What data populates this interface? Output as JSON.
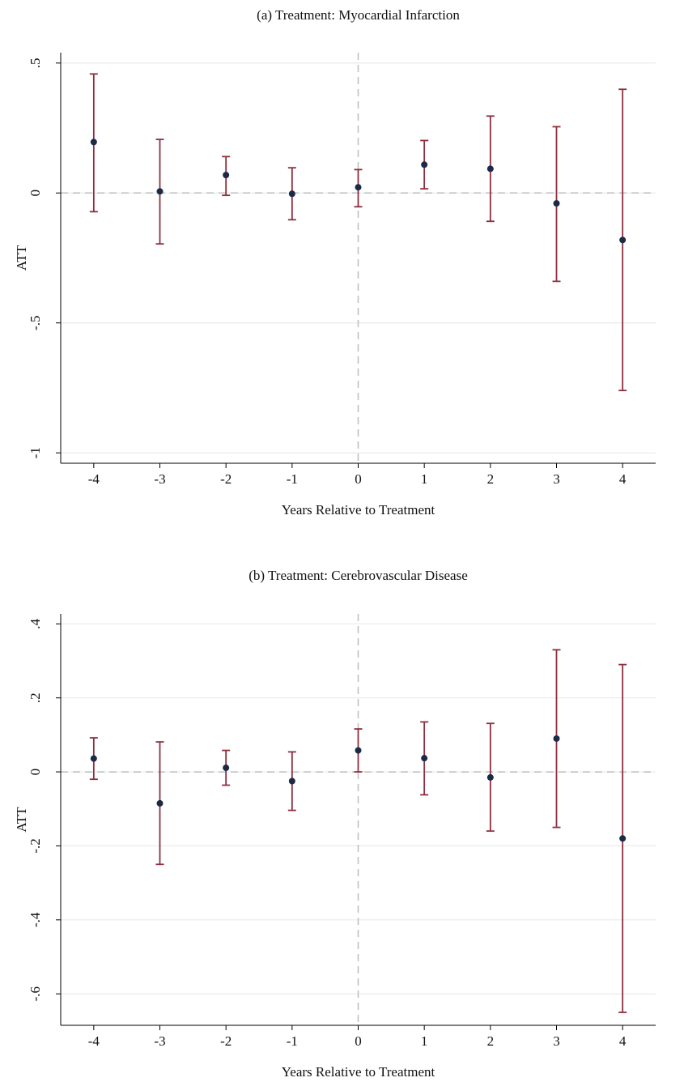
{
  "chart_data": [
    {
      "type": "errorbar",
      "title": "(a) Treatment: Myocardial Infarction",
      "xlabel": "Years Relative to Treatment",
      "ylabel": "ATT",
      "x": [
        -4,
        -3,
        -2,
        -1,
        0,
        1,
        2,
        3,
        4
      ],
      "values": [
        0.196,
        0.006,
        0.069,
        -0.003,
        0.022,
        0.109,
        0.093,
        -0.04,
        -0.181
      ],
      "lower": [
        -0.072,
        -0.196,
        -0.009,
        -0.103,
        -0.053,
        0.016,
        -0.109,
        -0.34,
        -0.76
      ],
      "upper": [
        0.458,
        0.206,
        0.14,
        0.097,
        0.09,
        0.202,
        0.296,
        0.255,
        0.399
      ],
      "point_color": "#1b2a47",
      "bar_color": "#8e2f3f",
      "xlim": [
        -4.5,
        4.5
      ],
      "ylim": [
        -1.04,
        0.54
      ],
      "xticks": [
        -4,
        -3,
        -2,
        -1,
        0,
        1,
        2,
        3,
        4
      ],
      "yticks": [
        {
          "value": -1,
          "label": "-1"
        },
        {
          "value": -0.5,
          "label": "-.5"
        },
        0,
        {
          "value": 0.5,
          "label": ".5"
        }
      ],
      "grid": true,
      "refline_x": 0,
      "refline_y": 0
    },
    {
      "type": "errorbar",
      "title": "(b) Treatment: Cerebrovascular Disease",
      "xlabel": "Years Relative to Treatment",
      "ylabel": "ATT",
      "x": [
        -4,
        -3,
        -2,
        -1,
        0,
        1,
        2,
        3,
        4
      ],
      "values": [
        0.036,
        -0.085,
        0.011,
        -0.025,
        0.058,
        0.037,
        -0.015,
        0.09,
        -0.18
      ],
      "lower": [
        -0.02,
        -0.25,
        -0.036,
        -0.104,
        0.0,
        -0.062,
        -0.16,
        -0.15,
        -0.65
      ],
      "upper": [
        0.092,
        0.081,
        0.058,
        0.054,
        0.116,
        0.135,
        0.131,
        0.33,
        0.29
      ],
      "point_color": "#1b2a47",
      "bar_color": "#8e2f3f",
      "xlim": [
        -4.5,
        4.5
      ],
      "ylim": [
        -0.685,
        0.427
      ],
      "xticks": [
        -4,
        -3,
        -2,
        -1,
        0,
        1,
        2,
        3,
        4
      ],
      "yticks": [
        {
          "value": -0.6,
          "label": "-.6"
        },
        {
          "value": -0.4,
          "label": "-.4"
        },
        {
          "value": -0.2,
          "label": "-.2"
        },
        0,
        {
          "value": 0.2,
          "label": ".2"
        },
        {
          "value": 0.4,
          "label": ".4"
        }
      ],
      "grid": true,
      "refline_x": 0,
      "refline_y": 0
    }
  ]
}
